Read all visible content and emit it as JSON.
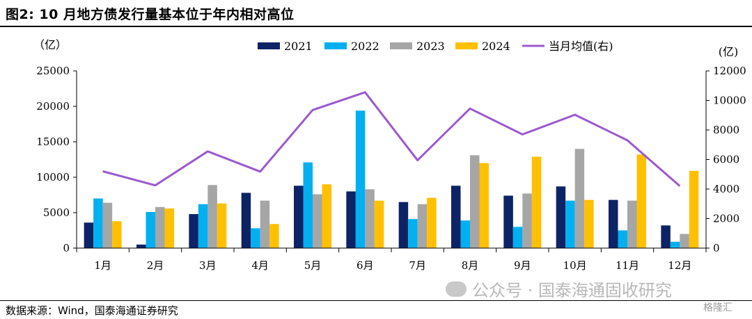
{
  "figure": {
    "title": "图2:  10 月地方债发行量基本位于年内相对高位",
    "source": "数据来源：Wind，国泰海通证券研究",
    "watermark": "公众号 · 国泰海通固收研究",
    "corner_logo": "格隆汇"
  },
  "chart_data": {
    "type": "bar",
    "categories": [
      "1月",
      "2月",
      "3月",
      "4月",
      "5月",
      "6月",
      "7月",
      "8月",
      "9月",
      "10月",
      "11月",
      "12月"
    ],
    "series": [
      {
        "name": "2021",
        "kind": "bar",
        "axis": "left",
        "color": "#0d2366",
        "values": [
          3600,
          500,
          4800,
          7800,
          8800,
          8000,
          6500,
          8800,
          7400,
          8700,
          6800,
          3200
        ]
      },
      {
        "name": "2022",
        "kind": "bar",
        "axis": "left",
        "color": "#00b0f0",
        "values": [
          7000,
          5100,
          6200,
          2800,
          12100,
          19400,
          4100,
          3900,
          3000,
          6700,
          2500,
          900
        ]
      },
      {
        "name": "2023",
        "kind": "bar",
        "axis": "left",
        "color": "#a6a6a6",
        "values": [
          6400,
          5800,
          8900,
          6700,
          7600,
          8300,
          6200,
          13100,
          7700,
          14000,
          6700,
          2000
        ]
      },
      {
        "name": "2024",
        "kind": "bar",
        "axis": "left",
        "color": "#ffc000",
        "values": [
          3800,
          5600,
          6300,
          3400,
          9000,
          6700,
          7100,
          12000,
          12900,
          6800,
          13200,
          10900
        ]
      },
      {
        "name": "当月均值(右)",
        "kind": "line",
        "axis": "right",
        "color": "#9b59d0",
        "values": [
          5200,
          4250,
          6550,
          5180,
          9350,
          10550,
          5950,
          9450,
          7700,
          9030,
          7300,
          4200
        ]
      }
    ],
    "ylim": [
      0,
      25000
    ],
    "y2lim": [
      0,
      12000
    ],
    "yticks": [
      "0",
      "5000",
      "10000",
      "15000",
      "20000",
      "25000"
    ],
    "y2ticks": [
      "0",
      "2000",
      "4000",
      "6000",
      "8000",
      "10000",
      "12000"
    ],
    "ylabel": "（亿）",
    "y2label": "(亿)",
    "legend_position": "top",
    "grid": false
  }
}
